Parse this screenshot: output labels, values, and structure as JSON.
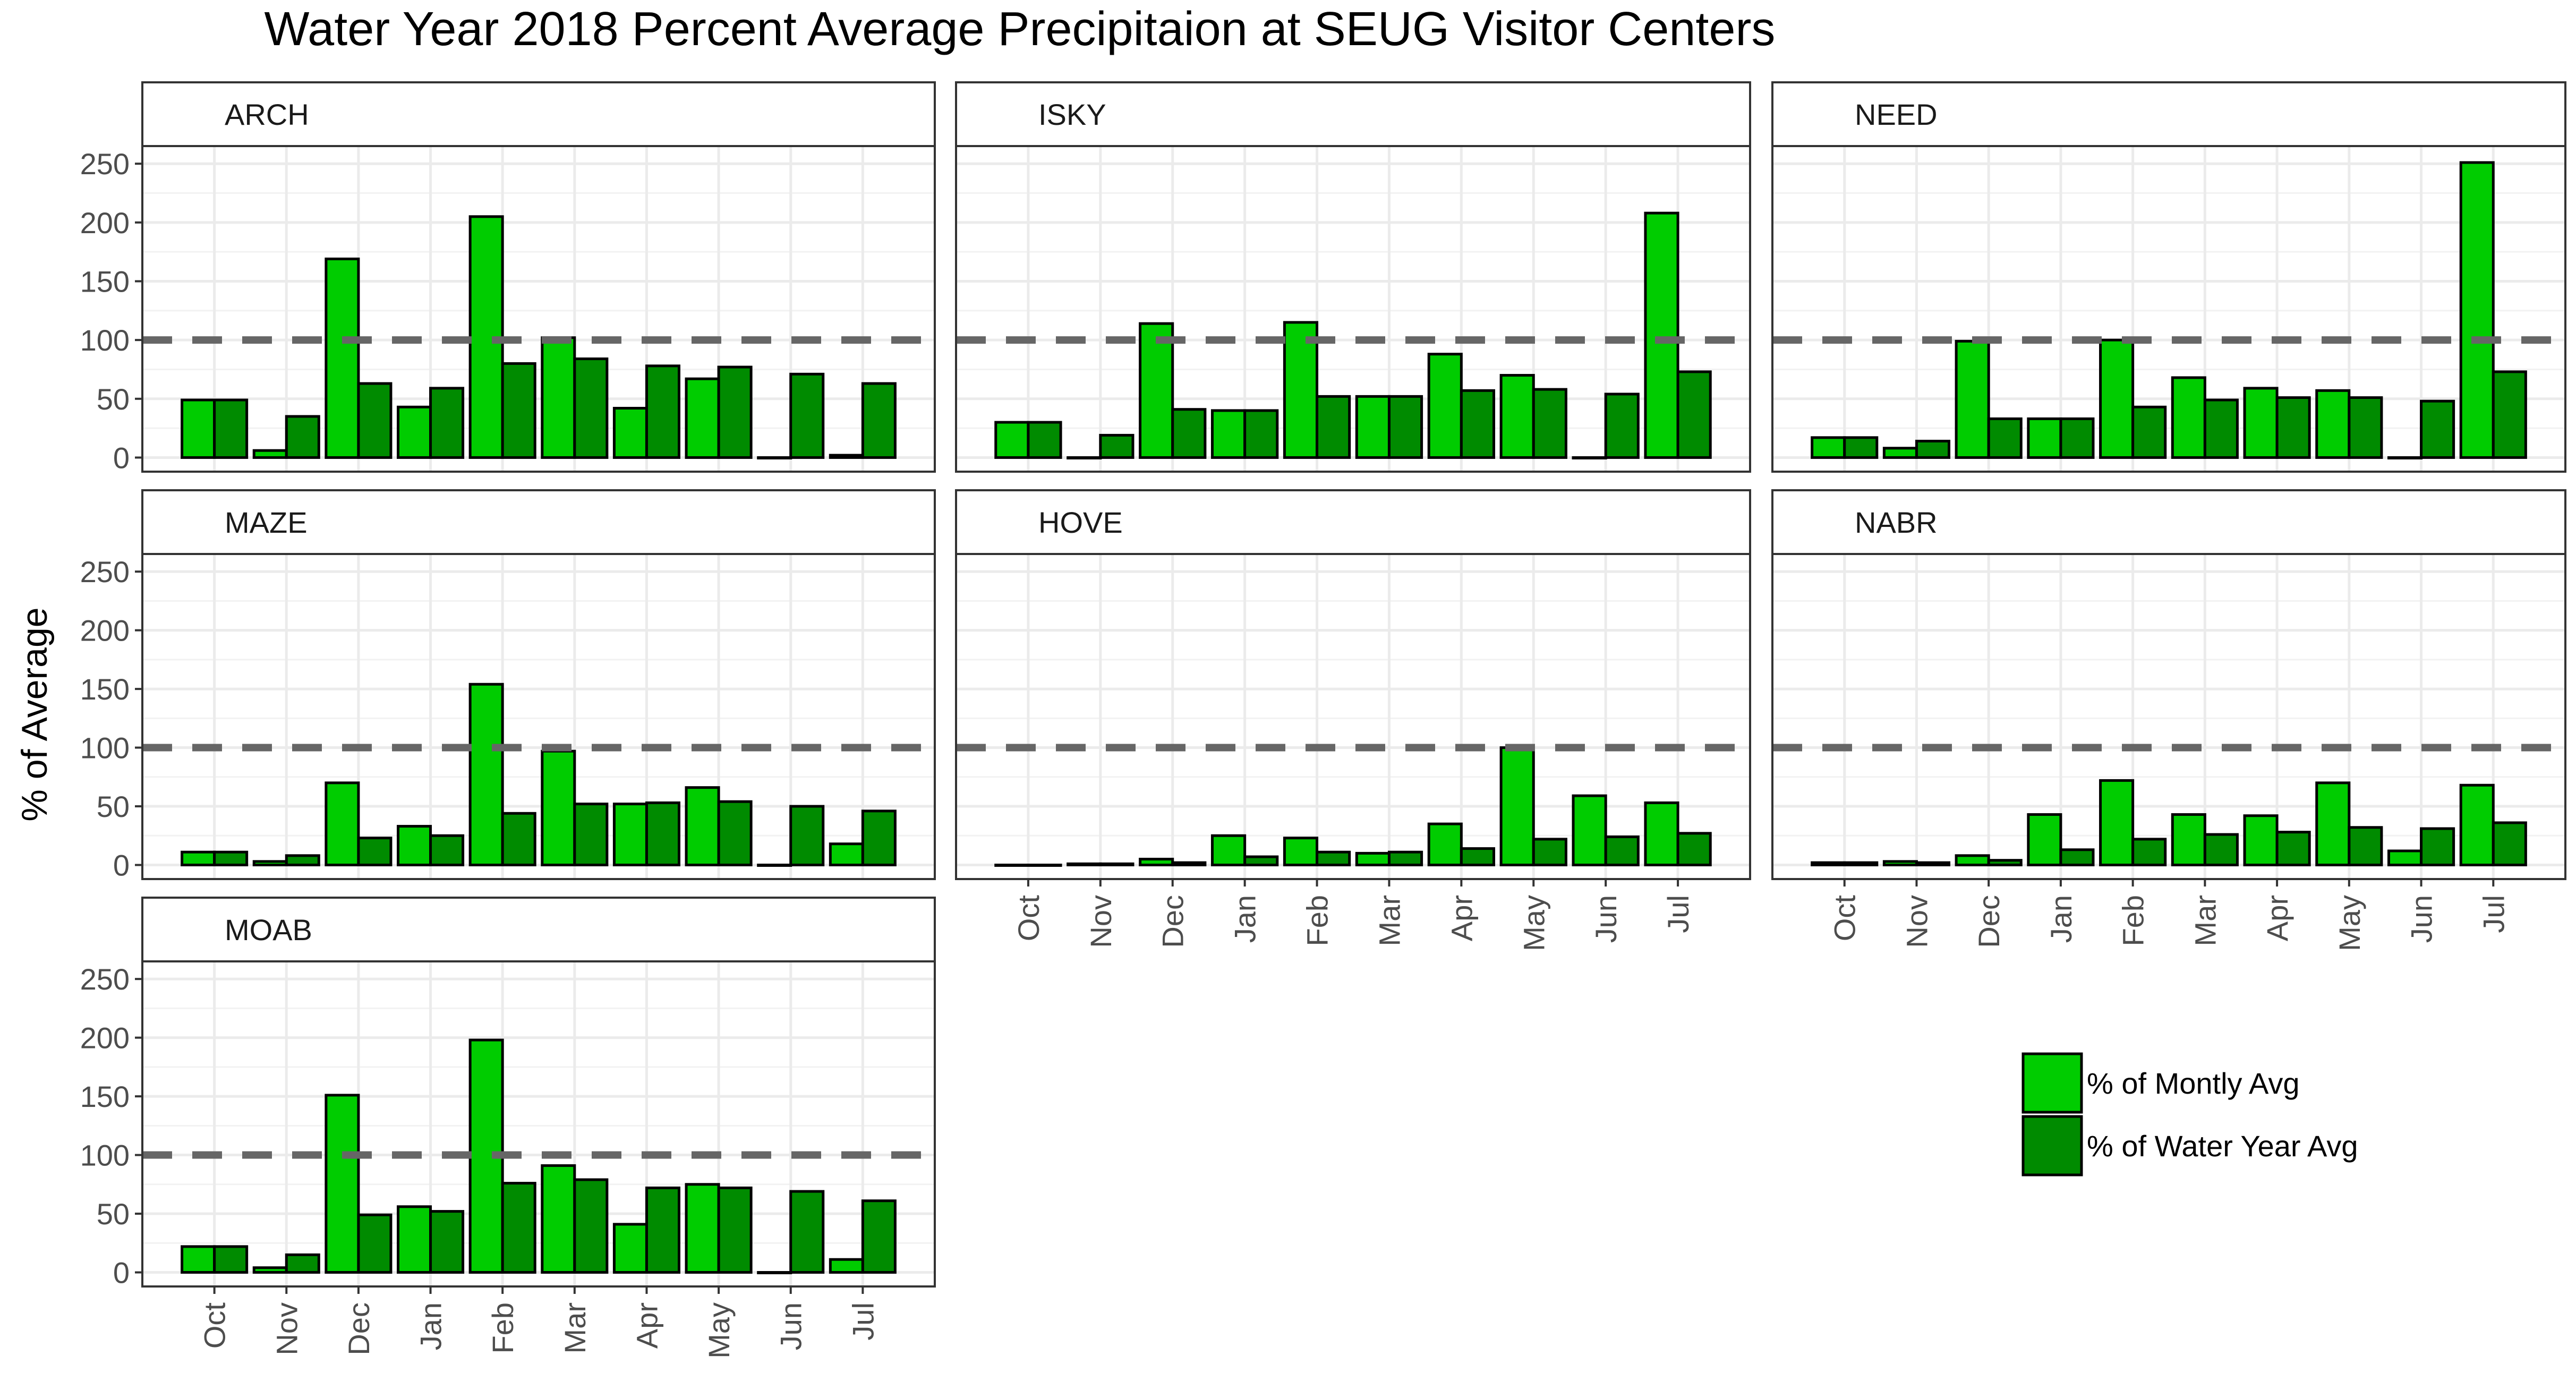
{
  "chart_data": {
    "type": "bar",
    "title": "Water Year 2018 Percent Average Precipitaion at SEUG Visitor Centers",
    "xlabel": "",
    "ylabel": "% of Average",
    "ylim": [
      -12,
      265
    ],
    "yticks": [
      0,
      50,
      100,
      150,
      200,
      250
    ],
    "reference_line": 100,
    "grid": true,
    "legend_position": "bottom-right",
    "categories": [
      "Oct",
      "Nov",
      "Dec",
      "Jan",
      "Feb",
      "Mar",
      "Apr",
      "May",
      "Jun",
      "Jul"
    ],
    "series_names": [
      "% of Montly Avg",
      "% of Water Year Avg"
    ],
    "colors": {
      "monthly": "#00cc00",
      "water_year": "#008b00",
      "ref_line": "#666666"
    },
    "panels": [
      {
        "name": "ARCH",
        "monthly": [
          49,
          6,
          169,
          43,
          205,
          102,
          42,
          67,
          0,
          2
        ],
        "water_year": [
          49,
          35,
          63,
          59,
          80,
          84,
          78,
          77,
          71,
          63
        ]
      },
      {
        "name": "ISKY",
        "monthly": [
          30,
          0,
          114,
          40,
          115,
          52,
          88,
          70,
          0,
          208
        ],
        "water_year": [
          30,
          19,
          41,
          40,
          52,
          52,
          57,
          58,
          54,
          73
        ]
      },
      {
        "name": "NEED",
        "monthly": [
          17,
          8,
          99,
          33,
          100,
          68,
          59,
          57,
          0,
          251
        ],
        "water_year": [
          17,
          14,
          33,
          33,
          43,
          49,
          51,
          51,
          48,
          73
        ]
      },
      {
        "name": "MAZE",
        "monthly": [
          11,
          3,
          70,
          33,
          154,
          97,
          52,
          66,
          0,
          18
        ],
        "water_year": [
          11,
          8,
          23,
          25,
          44,
          52,
          53,
          54,
          50,
          46
        ]
      },
      {
        "name": "HOVE",
        "monthly": [
          0,
          1,
          5,
          25,
          23,
          10,
          35,
          100,
          59,
          53
        ],
        "water_year": [
          0,
          1,
          2,
          7,
          11,
          11,
          14,
          22,
          24,
          27
        ]
      },
      {
        "name": "NABR",
        "monthly": [
          2,
          3,
          8,
          43,
          72,
          43,
          42,
          70,
          12,
          68
        ],
        "water_year": [
          2,
          2,
          4,
          13,
          22,
          26,
          28,
          32,
          31,
          36
        ]
      },
      {
        "name": "MOAB",
        "monthly": [
          22,
          4,
          151,
          56,
          198,
          91,
          41,
          75,
          0,
          11
        ],
        "water_year": [
          22,
          15,
          49,
          52,
          76,
          79,
          72,
          72,
          69,
          61
        ]
      }
    ]
  }
}
